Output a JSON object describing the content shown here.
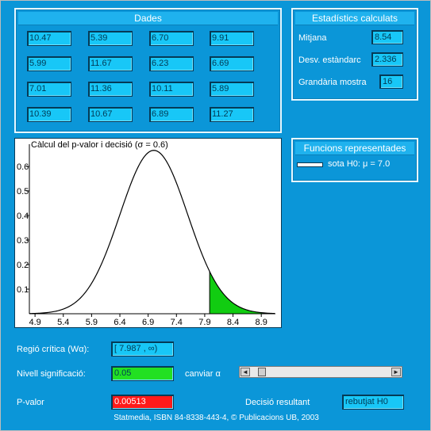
{
  "dades": {
    "title": "Dades",
    "values": [
      [
        "10.47",
        "5.39",
        "6.70",
        "9.91"
      ],
      [
        "5.99",
        "11.67",
        "6.23",
        "6.69"
      ],
      [
        "7.01",
        "11.36",
        "10.11",
        "5.89"
      ],
      [
        "10.39",
        "10.67",
        "6.89",
        "11.27"
      ]
    ]
  },
  "estadistics": {
    "title": "Estadístics calculats",
    "mitjana_label": "Mitjana",
    "mitjana_value": "8.54",
    "desv_label": "Desv. estàndarc",
    "desv_value": "2.336",
    "grandaria_label": "Grandària mostra",
    "grandaria_value": "16"
  },
  "funcions": {
    "title": "Funcions representades",
    "legend_label": "sota H0: μ = 7.0",
    "legend_color": "#ffffff"
  },
  "chart_data": {
    "type": "line",
    "title": "Càlcul del p-valor i decisió (σ = 0.6)",
    "mu": 7.0,
    "sigma": 0.6,
    "xlim": [
      4.8,
      9.15
    ],
    "ylim": [
      0,
      0.69
    ],
    "x_ticks": [
      "4.9",
      "5.4",
      "5.9",
      "6.4",
      "6.9",
      "7.4",
      "7.9",
      "8.4",
      "8.9"
    ],
    "x_tick_values": [
      4.9,
      5.4,
      5.9,
      6.4,
      6.9,
      7.4,
      7.9,
      8.4,
      8.9
    ],
    "y_ticks": [
      "0.1",
      "0.2",
      "0.3",
      "0.4",
      "0.5",
      "0.6"
    ],
    "y_tick_values": [
      0.1,
      0.2,
      0.3,
      0.4,
      0.5,
      0.6
    ],
    "critical_start": 7.987,
    "curve_color": "#000000",
    "fill_color": "#11cc11"
  },
  "controls": {
    "regio_label": "Regió crítica (Wα):",
    "regio_value": "[ 7.987 , ∞)",
    "regio_color": "#18c7f7",
    "nivell_label": "Nivell significació:",
    "nivell_value": "0.05",
    "nivell_color": "#22e022",
    "canviar_label": "canviar α",
    "alpha_fraction": 0.06,
    "pvalor_label": "P-valor",
    "pvalor_value": "0.00513",
    "pvalor_color": "#ff1a1a",
    "decisio_label": "Decisió resultant",
    "decisio_value": "rebutjat H0",
    "decisio_color": "#18c7f7",
    "slider_left_arrow": "◄",
    "slider_right_arrow": "►"
  },
  "footer": {
    "text": "Statmedia, ISBN 84-8338-443-4, © Publicacions UB, 2003"
  }
}
